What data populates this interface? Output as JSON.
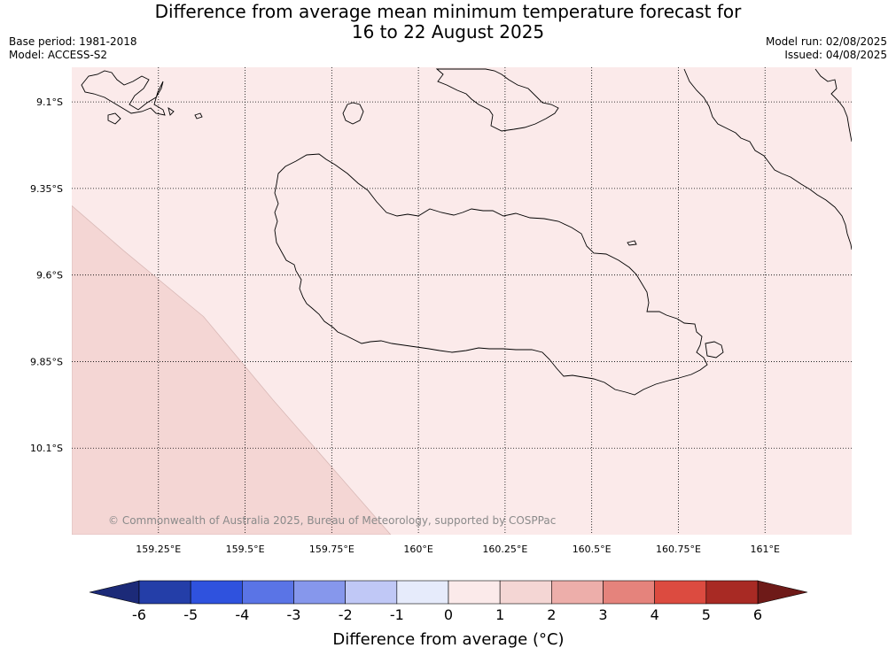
{
  "title_line1": "Difference from average mean minimum temperature forecast for",
  "title_line2": "16 to 22 August 2025",
  "meta_left": {
    "base_period": "Base period: 1981-2018",
    "model": "Model: ACCESS-S2"
  },
  "meta_right": {
    "model_run": "Model run: 02/08/2025",
    "issued": "Issued: 04/08/2025"
  },
  "map": {
    "background_color": "#fbeaea",
    "lon_range": [
      159.0,
      161.25
    ],
    "lat_range": [
      -10.35,
      -9.0
    ],
    "lon_ticks": [
      {
        "value": 159.25,
        "label": "159.25°E"
      },
      {
        "value": 159.5,
        "label": "159.5°E"
      },
      {
        "value": 159.75,
        "label": "159.75°E"
      },
      {
        "value": 160.0,
        "label": "160°E"
      },
      {
        "value": 160.25,
        "label": "160.25°E"
      },
      {
        "value": 160.5,
        "label": "160.5°E"
      },
      {
        "value": 160.75,
        "label": "160.75°E"
      },
      {
        "value": 161.0,
        "label": "161°E"
      }
    ],
    "lat_ticks": [
      {
        "value": -9.1,
        "label": "9.1°S"
      },
      {
        "value": -9.35,
        "label": "9.35°S"
      },
      {
        "value": -9.6,
        "label": "9.6°S"
      },
      {
        "value": -9.85,
        "label": "9.85°S"
      },
      {
        "value": -10.1,
        "label": "10.1°S"
      }
    ],
    "anomaly_region": {
      "color": "#f4d6d4",
      "boundary": [
        [
          159.0,
          -9.4
        ],
        [
          159.15,
          -9.53
        ],
        [
          159.38,
          -9.72
        ],
        [
          159.58,
          -9.96
        ],
        [
          159.92,
          -10.35
        ],
        [
          159.0,
          -10.35
        ]
      ]
    },
    "copyright": "© Commonwealth of Australia 2025, Bureau of Meteorology, supported by COSPPac",
    "land_label": "Guadalcanal coastline"
  },
  "colorbar": {
    "title": "Difference from average (°C)",
    "ticks": [
      "-6",
      "-5",
      "-4",
      "-3",
      "-2",
      "-1",
      "0",
      "1",
      "2",
      "3",
      "4",
      "5",
      "6"
    ],
    "under_color": "#1c2a78",
    "over_color": "#6e1a18",
    "colors": [
      "#243ea8",
      "#2f52de",
      "#5a74e6",
      "#8697ec",
      "#c0c8f6",
      "#e6ebfb",
      "#fbeaea",
      "#f4d6d4",
      "#edaeaa",
      "#e5837c",
      "#dc4b40",
      "#a82a24"
    ]
  }
}
